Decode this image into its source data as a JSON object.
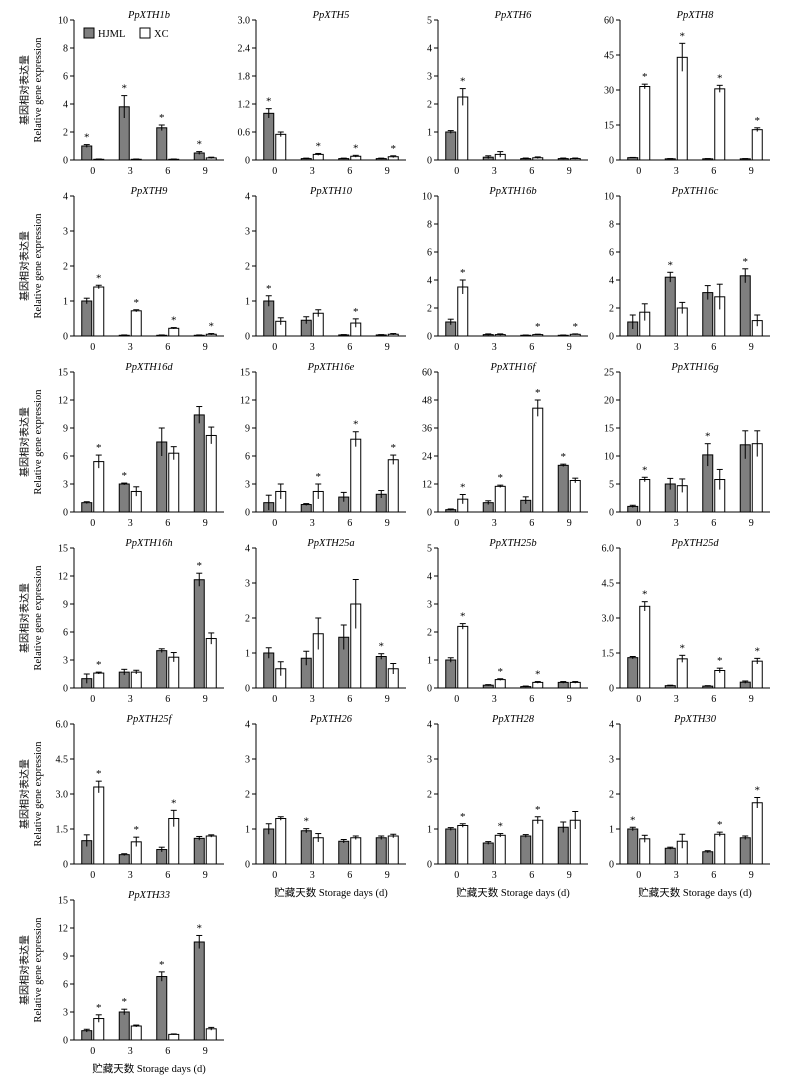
{
  "figure": {
    "ylabel_cn": "基因相对表达量",
    "ylabel_en": "Relative gene expression",
    "xlabel": "贮藏天数 Storage days (d)",
    "star": "*",
    "legend": [
      {
        "name": "HJML",
        "fill": "#7f7f7f"
      },
      {
        "name": "XC",
        "fill": "#ffffff"
      }
    ],
    "colors": {
      "HJML": "#7f7f7f",
      "XC": "#ffffff",
      "axis": "#000000"
    }
  },
  "chart_data": [
    {
      "type": "bar",
      "title": "PpXTH1b",
      "categories": [
        "0",
        "3",
        "6",
        "9"
      ],
      "ylim": [
        0,
        10
      ],
      "yticks": [
        "0",
        "2",
        "4",
        "6",
        "8",
        "10"
      ],
      "series": [
        {
          "name": "HJML",
          "values": [
            1.0,
            3.8,
            2.3,
            0.5
          ],
          "errors": [
            0.1,
            0.8,
            0.2,
            0.1
          ]
        },
        {
          "name": "XC",
          "values": [
            0.05,
            0.05,
            0.05,
            0.15
          ],
          "errors": [
            0.02,
            0.02,
            0.02,
            0.05
          ]
        }
      ],
      "sig": [
        "HJML",
        "HJML",
        "HJML",
        "HJML"
      ]
    },
    {
      "type": "bar",
      "title": "PpXTH5",
      "categories": [
        "0",
        "3",
        "6",
        "9"
      ],
      "ylim": [
        0,
        3
      ],
      "yticks": [
        "0",
        "0.6",
        "1.2",
        "1.8",
        "2.4",
        "3.0"
      ],
      "series": [
        {
          "name": "HJML",
          "values": [
            1.0,
            0.03,
            0.03,
            0.03
          ],
          "errors": [
            0.1,
            0.01,
            0.01,
            0.01
          ]
        },
        {
          "name": "XC",
          "values": [
            0.55,
            0.12,
            0.08,
            0.07
          ],
          "errors": [
            0.05,
            0.02,
            0.02,
            0.02
          ]
        }
      ],
      "sig": [
        "HJML",
        "XC",
        "XC",
        "XC"
      ]
    },
    {
      "type": "bar",
      "title": "PpXTH6",
      "categories": [
        "0",
        "3",
        "6",
        "9"
      ],
      "ylim": [
        0,
        5
      ],
      "yticks": [
        "0",
        "1",
        "2",
        "3",
        "4",
        "5"
      ],
      "series": [
        {
          "name": "HJML",
          "values": [
            1.0,
            0.1,
            0.05,
            0.05
          ],
          "errors": [
            0.05,
            0.05,
            0.02,
            0.02
          ]
        },
        {
          "name": "XC",
          "values": [
            2.25,
            0.2,
            0.08,
            0.05
          ],
          "errors": [
            0.3,
            0.1,
            0.03,
            0.02
          ]
        }
      ],
      "sig": [
        "XC",
        null,
        null,
        null
      ]
    },
    {
      "type": "bar",
      "title": "PpXTH8",
      "categories": [
        "0",
        "3",
        "6",
        "9"
      ],
      "ylim": [
        0,
        60
      ],
      "yticks": [
        "0",
        "15",
        "30",
        "45",
        "60"
      ],
      "series": [
        {
          "name": "HJML",
          "values": [
            1.0,
            0.5,
            0.5,
            0.5
          ],
          "errors": [
            0.1,
            0.1,
            0.1,
            0.1
          ]
        },
        {
          "name": "XC",
          "values": [
            31.5,
            44,
            30.5,
            13
          ],
          "errors": [
            1,
            6,
            1.5,
            0.8
          ]
        }
      ],
      "sig": [
        "XC",
        "XC",
        "XC",
        "XC"
      ]
    },
    {
      "type": "bar",
      "title": "PpXTH9",
      "categories": [
        "0",
        "3",
        "6",
        "9"
      ],
      "ylim": [
        0,
        4
      ],
      "yticks": [
        "0",
        "1",
        "2",
        "3",
        "4"
      ],
      "series": [
        {
          "name": "HJML",
          "values": [
            1.0,
            0.02,
            0.02,
            0.02
          ],
          "errors": [
            0.08,
            0.01,
            0.01,
            0.01
          ]
        },
        {
          "name": "XC",
          "values": [
            1.4,
            0.72,
            0.22,
            0.05
          ],
          "errors": [
            0.05,
            0.03,
            0.02,
            0.02
          ]
        }
      ],
      "sig": [
        "XC",
        "XC",
        "XC",
        "XC"
      ]
    },
    {
      "type": "bar",
      "title": "PpXTH10",
      "categories": [
        "0",
        "3",
        "6",
        "9"
      ],
      "ylim": [
        0,
        4
      ],
      "yticks": [
        "0",
        "1",
        "2",
        "3",
        "4"
      ],
      "series": [
        {
          "name": "HJML",
          "values": [
            1.0,
            0.45,
            0.03,
            0.03
          ],
          "errors": [
            0.15,
            0.1,
            0.01,
            0.01
          ]
        },
        {
          "name": "XC",
          "values": [
            0.42,
            0.65,
            0.37,
            0.05
          ],
          "errors": [
            0.1,
            0.1,
            0.12,
            0.02
          ]
        }
      ],
      "sig": [
        "HJML",
        null,
        "XC",
        null
      ]
    },
    {
      "type": "bar",
      "title": "PpXTH16b",
      "categories": [
        "0",
        "3",
        "6",
        "9"
      ],
      "ylim": [
        0,
        10
      ],
      "yticks": [
        "0",
        "2",
        "4",
        "6",
        "8",
        "10"
      ],
      "series": [
        {
          "name": "HJML",
          "values": [
            1.0,
            0.1,
            0.05,
            0.05
          ],
          "errors": [
            0.2,
            0.05,
            0.02,
            0.02
          ]
        },
        {
          "name": "XC",
          "values": [
            3.5,
            0.1,
            0.1,
            0.12
          ],
          "errors": [
            0.5,
            0.05,
            0.03,
            0.03
          ]
        }
      ],
      "sig": [
        "XC",
        null,
        "XC",
        "XC"
      ]
    },
    {
      "type": "bar",
      "title": "PpXTH16c",
      "categories": [
        "0",
        "3",
        "6",
        "9"
      ],
      "ylim": [
        0,
        10
      ],
      "yticks": [
        "0",
        "2",
        "4",
        "6",
        "8",
        "10"
      ],
      "series": [
        {
          "name": "HJML",
          "values": [
            1.0,
            4.2,
            3.1,
            4.3
          ],
          "errors": [
            0.5,
            0.35,
            0.5,
            0.5
          ]
        },
        {
          "name": "XC",
          "values": [
            1.7,
            2.0,
            2.8,
            1.1
          ],
          "errors": [
            0.6,
            0.4,
            0.9,
            0.4
          ]
        }
      ],
      "sig": [
        null,
        "HJML",
        null,
        "HJML"
      ]
    },
    {
      "type": "bar",
      "title": "PpXTH16d",
      "categories": [
        "0",
        "3",
        "6",
        "9"
      ],
      "ylim": [
        0,
        15
      ],
      "yticks": [
        "0",
        "3",
        "6",
        "9",
        "12",
        "15"
      ],
      "series": [
        {
          "name": "HJML",
          "values": [
            1.0,
            3.0,
            7.5,
            10.4
          ],
          "errors": [
            0.1,
            0.1,
            1.5,
            0.9
          ]
        },
        {
          "name": "XC",
          "values": [
            5.4,
            2.2,
            6.3,
            8.2
          ],
          "errors": [
            0.7,
            0.5,
            0.7,
            0.9
          ]
        }
      ],
      "sig": [
        "XC",
        "HJML",
        null,
        null
      ]
    },
    {
      "type": "bar",
      "title": "PpXTH16e",
      "categories": [
        "0",
        "3",
        "6",
        "9"
      ],
      "ylim": [
        0,
        15
      ],
      "yticks": [
        "0",
        "3",
        "6",
        "9",
        "12",
        "15"
      ],
      "series": [
        {
          "name": "HJML",
          "values": [
            1.0,
            0.8,
            1.6,
            1.9
          ],
          "errors": [
            0.8,
            0.1,
            0.5,
            0.4
          ]
        },
        {
          "name": "XC",
          "values": [
            2.2,
            2.2,
            7.8,
            5.6
          ],
          "errors": [
            0.8,
            0.8,
            0.8,
            0.5
          ]
        }
      ],
      "sig": [
        null,
        "XC",
        "XC",
        "XC"
      ]
    },
    {
      "type": "bar",
      "title": "PpXTH16f",
      "categories": [
        "0",
        "3",
        "6",
        "9"
      ],
      "ylim": [
        0,
        60
      ],
      "yticks": [
        "0",
        "12",
        "24",
        "36",
        "48",
        "60"
      ],
      "series": [
        {
          "name": "HJML",
          "values": [
            1.0,
            4.0,
            5.0,
            20
          ],
          "errors": [
            0.3,
            0.8,
            1.5,
            0.5
          ]
        },
        {
          "name": "XC",
          "values": [
            5.5,
            11,
            44.5,
            13.5
          ],
          "errors": [
            2,
            0.5,
            3.5,
            1
          ]
        }
      ],
      "sig": [
        "XC",
        "XC",
        "XC",
        "HJML"
      ]
    },
    {
      "type": "bar",
      "title": "PpXTH16g",
      "categories": [
        "0",
        "3",
        "6",
        "9"
      ],
      "ylim": [
        0,
        25
      ],
      "yticks": [
        "0",
        "5",
        "10",
        "15",
        "20",
        "25"
      ],
      "series": [
        {
          "name": "HJML",
          "values": [
            1.0,
            5.0,
            10.2,
            12
          ],
          "errors": [
            0.2,
            1,
            2,
            2.5
          ]
        },
        {
          "name": "XC",
          "values": [
            5.8,
            4.7,
            5.8,
            12.2
          ],
          "errors": [
            0.4,
            1.2,
            1.8,
            2.3
          ]
        }
      ],
      "sig": [
        "XC",
        null,
        "HJML",
        null
      ]
    },
    {
      "type": "bar",
      "title": "PpXTH16h",
      "categories": [
        "0",
        "3",
        "6",
        "9"
      ],
      "ylim": [
        0,
        15
      ],
      "yticks": [
        "0",
        "3",
        "6",
        "9",
        "12",
        "15"
      ],
      "series": [
        {
          "name": "HJML",
          "values": [
            1.0,
            1.7,
            4.0,
            11.6
          ],
          "errors": [
            0.5,
            0.3,
            0.2,
            0.7
          ]
        },
        {
          "name": "XC",
          "values": [
            1.6,
            1.7,
            3.3,
            5.3
          ],
          "errors": [
            0.1,
            0.2,
            0.5,
            0.6
          ]
        }
      ],
      "sig": [
        "XC",
        null,
        null,
        "HJML"
      ]
    },
    {
      "type": "bar",
      "title": "PpXTH25a",
      "categories": [
        "0",
        "3",
        "6",
        "9"
      ],
      "ylim": [
        0,
        4
      ],
      "yticks": [
        "0",
        "1",
        "2",
        "3",
        "4"
      ],
      "series": [
        {
          "name": "HJML",
          "values": [
            1.0,
            0.85,
            1.45,
            0.9
          ],
          "errors": [
            0.15,
            0.2,
            0.35,
            0.08
          ]
        },
        {
          "name": "XC",
          "values": [
            0.55,
            1.55,
            2.4,
            0.55
          ],
          "errors": [
            0.2,
            0.45,
            0.7,
            0.15
          ]
        }
      ],
      "sig": [
        null,
        null,
        null,
        "HJML"
      ]
    },
    {
      "type": "bar",
      "title": "PpXTH25b",
      "categories": [
        "0",
        "3",
        "6",
        "9"
      ],
      "ylim": [
        0,
        5
      ],
      "yticks": [
        "0",
        "1",
        "2",
        "3",
        "4",
        "5"
      ],
      "series": [
        {
          "name": "HJML",
          "values": [
            1.0,
            0.1,
            0.05,
            0.2
          ],
          "errors": [
            0.08,
            0.02,
            0.02,
            0.03
          ]
        },
        {
          "name": "XC",
          "values": [
            2.2,
            0.3,
            0.2,
            0.2
          ],
          "errors": [
            0.1,
            0.03,
            0.03,
            0.03
          ]
        }
      ],
      "sig": [
        "XC",
        "XC",
        "XC",
        null
      ]
    },
    {
      "type": "bar",
      "title": "PpXTH25d",
      "categories": [
        "0",
        "3",
        "6",
        "9"
      ],
      "ylim": [
        0,
        6
      ],
      "yticks": [
        "0",
        "1.5",
        "3.0",
        "4.5",
        "6.0"
      ],
      "series": [
        {
          "name": "HJML",
          "values": [
            1.3,
            0.1,
            0.08,
            0.25
          ],
          "errors": [
            0.05,
            0.02,
            0.02,
            0.05
          ]
        },
        {
          "name": "XC",
          "values": [
            3.5,
            1.25,
            0.75,
            1.15
          ],
          "errors": [
            0.2,
            0.15,
            0.1,
            0.12
          ]
        }
      ],
      "sig": [
        "XC",
        "XC",
        "XC",
        "XC"
      ]
    },
    {
      "type": "bar",
      "title": "PpXTH25f",
      "categories": [
        "0",
        "3",
        "6",
        "9"
      ],
      "ylim": [
        0,
        6
      ],
      "yticks": [
        "0",
        "1.5",
        "3.0",
        "4.5",
        "6.0"
      ],
      "series": [
        {
          "name": "HJML",
          "values": [
            1.0,
            0.4,
            0.62,
            1.1
          ],
          "errors": [
            0.25,
            0.04,
            0.1,
            0.08
          ]
        },
        {
          "name": "XC",
          "values": [
            3.3,
            0.95,
            1.95,
            1.2
          ],
          "errors": [
            0.25,
            0.2,
            0.35,
            0.05
          ]
        }
      ],
      "sig": [
        "XC",
        "XC",
        "XC",
        null
      ]
    },
    {
      "type": "bar",
      "title": "PpXTH26",
      "categories": [
        "0",
        "3",
        "6",
        "9"
      ],
      "ylim": [
        0,
        4
      ],
      "yticks": [
        "0",
        "1",
        "2",
        "3",
        "4"
      ],
      "series": [
        {
          "name": "HJML",
          "values": [
            1.0,
            0.95,
            0.65,
            0.75
          ],
          "errors": [
            0.15,
            0.06,
            0.05,
            0.05
          ]
        },
        {
          "name": "XC",
          "values": [
            1.3,
            0.75,
            0.75,
            0.8
          ],
          "errors": [
            0.05,
            0.12,
            0.05,
            0.05
          ]
        }
      ],
      "sig": [
        null,
        "HJML",
        null,
        null
      ]
    },
    {
      "type": "bar",
      "title": "PpXTH28",
      "categories": [
        "0",
        "3",
        "6",
        "9"
      ],
      "ylim": [
        0,
        4
      ],
      "yticks": [
        "0",
        "1",
        "2",
        "3",
        "4"
      ],
      "series": [
        {
          "name": "HJML",
          "values": [
            1.0,
            0.6,
            0.8,
            1.05
          ],
          "errors": [
            0.04,
            0.04,
            0.04,
            0.15
          ]
        },
        {
          "name": "XC",
          "values": [
            1.1,
            0.82,
            1.25,
            1.25
          ],
          "errors": [
            0.05,
            0.05,
            0.1,
            0.25
          ]
        }
      ],
      "sig": [
        "XC",
        "XC",
        "XC",
        null
      ]
    },
    {
      "type": "bar",
      "title": "PpXTH30",
      "categories": [
        "0",
        "3",
        "6",
        "9"
      ],
      "ylim": [
        0,
        4
      ],
      "yticks": [
        "0",
        "1",
        "2",
        "3",
        "4"
      ],
      "series": [
        {
          "name": "HJML",
          "values": [
            1.0,
            0.45,
            0.35,
            0.75
          ],
          "errors": [
            0.05,
            0.03,
            0.03,
            0.05
          ]
        },
        {
          "name": "XC",
          "values": [
            0.72,
            0.65,
            0.85,
            1.75
          ],
          "errors": [
            0.1,
            0.2,
            0.06,
            0.15
          ]
        }
      ],
      "sig": [
        "HJML",
        null,
        "XC",
        "XC"
      ]
    },
    {
      "type": "bar",
      "title": "PpXTH33",
      "categories": [
        "0",
        "3",
        "6",
        "9"
      ],
      "ylim": [
        0,
        15
      ],
      "yticks": [
        "0",
        "3",
        "6",
        "9",
        "12",
        "15"
      ],
      "series": [
        {
          "name": "HJML",
          "values": [
            1.0,
            3.0,
            6.8,
            10.5
          ],
          "errors": [
            0.15,
            0.3,
            0.5,
            0.7
          ]
        },
        {
          "name": "XC",
          "values": [
            2.3,
            1.5,
            0.6,
            1.2
          ],
          "errors": [
            0.4,
            0.1,
            0.05,
            0.15
          ]
        }
      ],
      "sig": [
        "XC",
        "HJML",
        "HJML",
        "HJML"
      ]
    }
  ]
}
